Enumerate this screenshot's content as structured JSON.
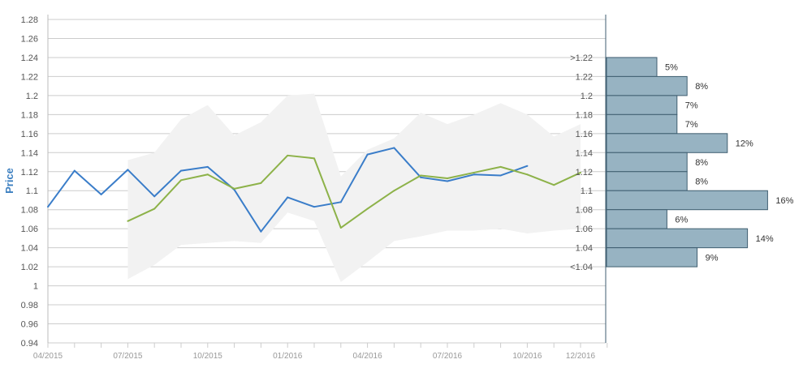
{
  "chart_data": {
    "type": "line",
    "ylabel": "Price",
    "ylim": [
      0.94,
      1.28
    ],
    "y_ticks": [
      "1.28",
      "1.26",
      "1.24",
      "1.22",
      "1.2",
      "1.18",
      "1.16",
      "1.14",
      "1.12",
      "1.1",
      "1.08",
      "1.06",
      "1.04",
      "1.02",
      "1",
      "0.98",
      "0.96",
      "0.94"
    ],
    "x_ticks": [
      "04/2015",
      "07/2015",
      "10/2015",
      "01/2016",
      "04/2016",
      "07/2016",
      "10/2016",
      "12/2016"
    ],
    "series": [
      {
        "color": "#3a7dc9",
        "x": [
          "04/2015",
          "05/2015",
          "06/2015",
          "07/2015",
          "08/2015",
          "09/2015",
          "10/2015",
          "11/2015",
          "12/2015",
          "01/2016",
          "02/2016",
          "03/2016",
          "04/2016",
          "05/2016",
          "06/2016",
          "07/2016",
          "08/2016",
          "09/2016",
          "10/2016"
        ],
        "values": [
          1.083,
          1.121,
          1.096,
          1.122,
          1.094,
          1.121,
          1.125,
          1.101,
          1.057,
          1.093,
          1.083,
          1.088,
          1.138,
          1.145,
          1.114,
          1.11,
          1.117,
          1.116,
          1.126
        ]
      },
      {
        "color": "#8db249",
        "x": [
          "07/2015",
          "08/2015",
          "09/2015",
          "10/2015",
          "11/2015",
          "12/2015",
          "01/2016",
          "02/2016",
          "03/2016",
          "04/2016",
          "05/2016",
          "06/2016",
          "07/2016",
          "08/2016",
          "09/2016",
          "10/2016",
          "11/2016",
          "12/2016"
        ],
        "values": [
          1.068,
          1.081,
          1.111,
          1.117,
          1.102,
          1.108,
          1.137,
          1.134,
          1.061,
          1.081,
          1.1,
          1.116,
          1.113,
          1.119,
          1.125,
          1.117,
          1.106,
          1.119
        ]
      }
    ],
    "band": {
      "color": "#f2f2f2",
      "x": [
        "07/2015",
        "08/2015",
        "09/2015",
        "10/2015",
        "11/2015",
        "12/2015",
        "01/2016",
        "02/2016",
        "03/2016",
        "04/2016",
        "05/2016",
        "06/2016",
        "07/2016",
        "08/2016",
        "09/2016",
        "10/2016",
        "11/2016",
        "12/2016"
      ],
      "upper": [
        1.132,
        1.14,
        1.175,
        1.19,
        1.158,
        1.172,
        1.2,
        1.202,
        1.115,
        1.143,
        1.155,
        1.182,
        1.17,
        1.18,
        1.192,
        1.18,
        1.157,
        1.17
      ],
      "lower": [
        1.007,
        1.022,
        1.043,
        1.045,
        1.047,
        1.045,
        1.077,
        1.068,
        1.004,
        1.025,
        1.047,
        1.052,
        1.058,
        1.058,
        1.06,
        1.055,
        1.058,
        1.06
      ]
    },
    "distribution": {
      "color": "#97b3c2",
      "bins": [
        {
          "label": ">1.22",
          "from": 1.22,
          "to": 1.24,
          "percent": 5,
          "text": "5%"
        },
        {
          "label": "1.22",
          "from": 1.2,
          "to": 1.22,
          "percent": 8,
          "text": "8%"
        },
        {
          "label": "1.2",
          "from": 1.18,
          "to": 1.2,
          "percent": 7,
          "text": "7%"
        },
        {
          "label": "1.18",
          "from": 1.16,
          "to": 1.18,
          "percent": 7,
          "text": "7%"
        },
        {
          "label": "1.16",
          "from": 1.14,
          "to": 1.16,
          "percent": 12,
          "text": "12%"
        },
        {
          "label": "1.14",
          "from": 1.12,
          "to": 1.14,
          "percent": 8,
          "text": "8%"
        },
        {
          "label": "1.12",
          "from": 1.1,
          "to": 1.12,
          "percent": 8,
          "text": "8%"
        },
        {
          "label": "1.1",
          "from": 1.08,
          "to": 1.1,
          "percent": 16,
          "text": "16%"
        },
        {
          "label": "1.08",
          "from": 1.06,
          "to": 1.08,
          "percent": 6,
          "text": "6%"
        },
        {
          "label": "1.06",
          "from": 1.04,
          "to": 1.06,
          "percent": 14,
          "text": "14%"
        },
        {
          "label": "1.04",
          "from": 1.02,
          "to": 1.04,
          "percent": 9,
          "text": "9%"
        },
        {
          "label": "<1.04",
          "from": 1.02,
          "to": 1.02,
          "percent": 0,
          "text": ""
        }
      ]
    },
    "grid": true
  }
}
